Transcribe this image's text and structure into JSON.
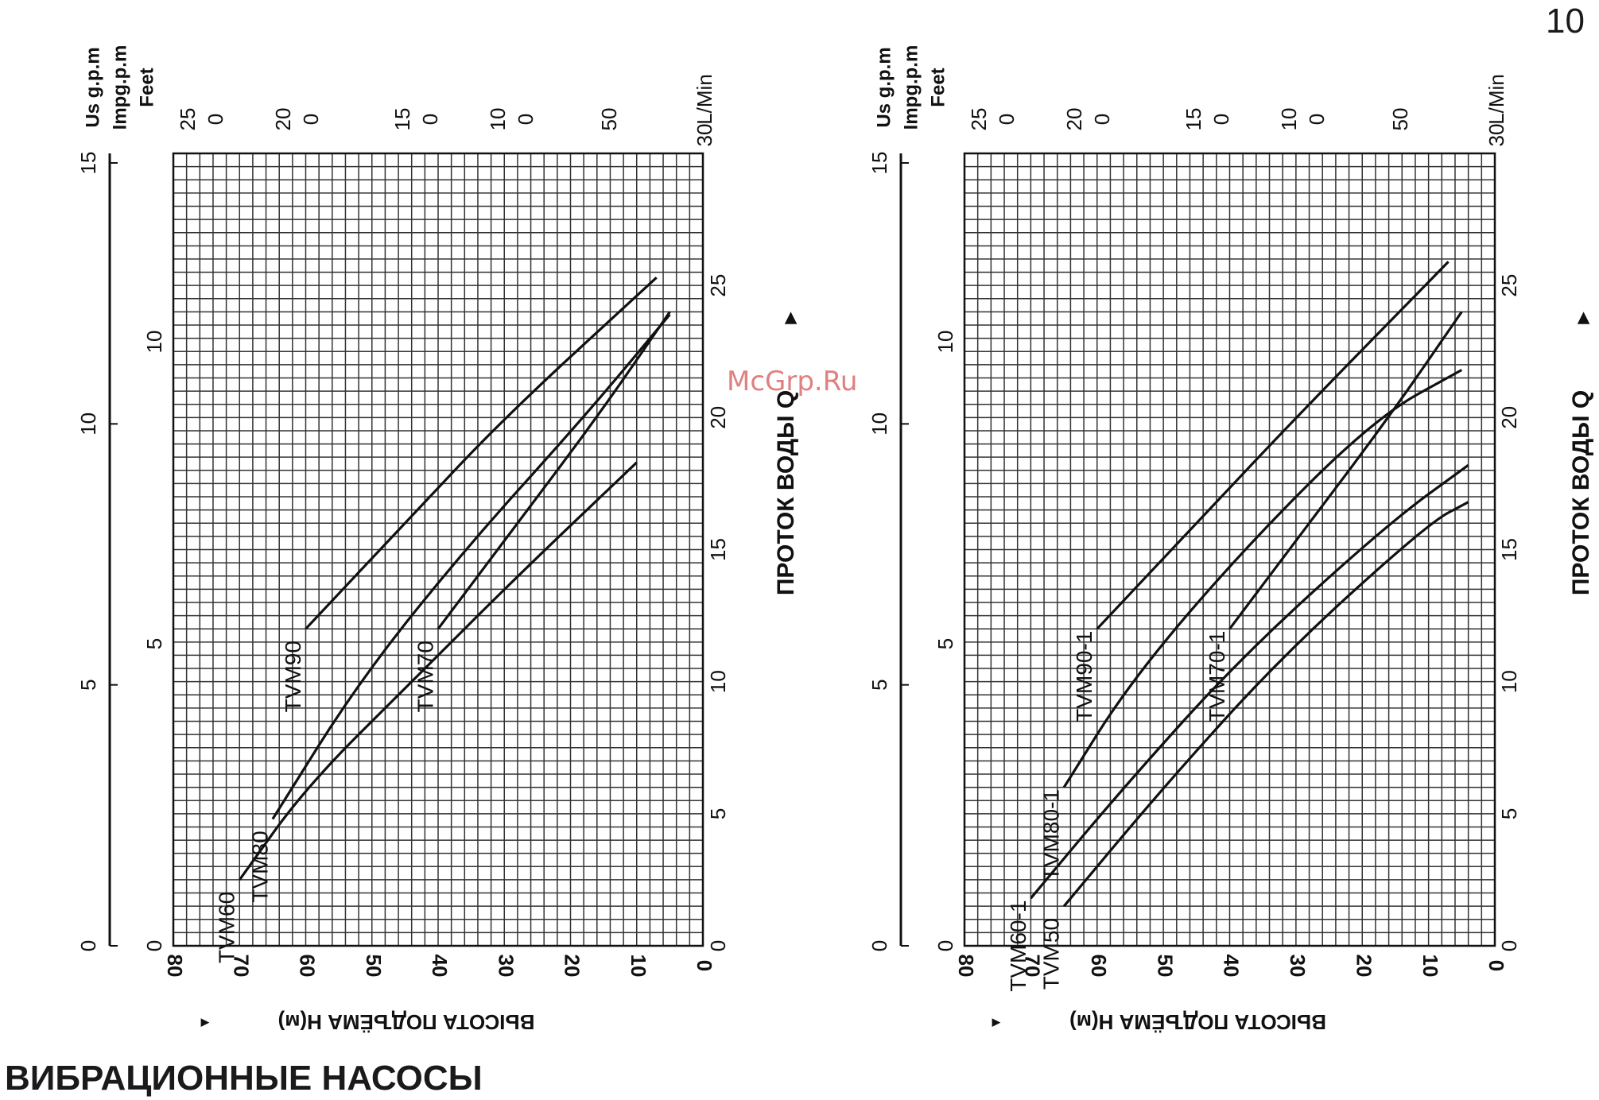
{
  "page_number": "10",
  "page_title": "ВИБРАЦИОННЫЕ НАСОСЫ",
  "watermark": "McGrp.Ru",
  "chart_data": [
    {
      "type": "line",
      "title": "",
      "ylabel": "ВЫСОТА ПОДЪЁМА H(м)",
      "xlabel": "ПРОТОК ВОДЫ Q",
      "unit_labels": [
        "Us g.p.m",
        "Impg.p.m",
        "Feet"
      ],
      "x_unit_label": "L/Min",
      "xlim": [
        0,
        30
      ],
      "ylim": [
        0,
        80
      ],
      "head_ticks": [
        "80",
        "70",
        "60",
        "50",
        "40",
        "30",
        "20",
        "10",
        "0"
      ],
      "feet_ticks": [
        "25",
        "20",
        "15",
        "10",
        "50"
      ],
      "impg_ticks": [
        "0",
        "0",
        "0",
        "0"
      ],
      "impg_axis_ticks": [
        "0",
        "5",
        "10"
      ],
      "usg_axis_ticks": [
        "0",
        "5",
        "10",
        "15"
      ],
      "flow_ticks": [
        "0",
        "5",
        "10",
        "15",
        "20",
        "25",
        "30"
      ],
      "series": [
        {
          "name": "TVM60",
          "x": [
            2.5,
            6,
            10,
            14,
            18.3
          ],
          "y": [
            70,
            60,
            44,
            28,
            10
          ]
        },
        {
          "name": "TVM80",
          "x": [
            4.8,
            10,
            15,
            20,
            23.9
          ],
          "y": [
            65,
            52,
            36,
            18,
            5
          ]
        },
        {
          "name": "TVM90",
          "x": [
            12,
            16,
            20,
            25.3
          ],
          "y": [
            60,
            45,
            30,
            7
          ]
        },
        {
          "name": "TVM70",
          "x": [
            12,
            16,
            20,
            24
          ],
          "y": [
            40,
            28,
            16,
            5
          ]
        }
      ]
    },
    {
      "type": "line",
      "title": "",
      "ylabel": "ВЫСОТА ПОДЪЁМА H(м)",
      "xlabel": "ПРОТОК ВОДЫ Q",
      "unit_labels": [
        "Us g.p.m",
        "Impg.p.m",
        "Feet"
      ],
      "x_unit_label": "L/Min",
      "xlim": [
        0,
        30
      ],
      "ylim": [
        0,
        80
      ],
      "head_ticks": [
        "80",
        "70",
        "60",
        "50",
        "40",
        "30",
        "20",
        "10",
        "0"
      ],
      "feet_ticks": [
        "25",
        "20",
        "15",
        "10",
        "50"
      ],
      "impg_ticks": [
        "0",
        "0",
        "0",
        "0"
      ],
      "impg_axis_ticks": [
        "0",
        "5",
        "10"
      ],
      "usg_axis_ticks": [
        "0",
        "5",
        "10",
        "15"
      ],
      "flow_ticks": [
        "0",
        "5",
        "10",
        "15",
        "20",
        "25",
        "30"
      ],
      "series": [
        {
          "name": "TVM60-1",
          "x": [
            1.8,
            6,
            11,
            16,
            18.2
          ],
          "y": [
            70,
            56,
            38,
            16,
            4
          ]
        },
        {
          "name": "TVM50",
          "x": [
            1.5,
            6,
            11,
            16,
            16.8
          ],
          "y": [
            65,
            50,
            32,
            10,
            4
          ]
        },
        {
          "name": "TVM80-1",
          "x": [
            6,
            10,
            15,
            20,
            21.8
          ],
          "y": [
            65,
            55,
            38,
            18,
            5
          ]
        },
        {
          "name": "TVM90-1",
          "x": [
            12,
            16,
            20,
            25.9
          ],
          "y": [
            60,
            45,
            30,
            7
          ]
        },
        {
          "name": "TVM70-1",
          "x": [
            12,
            16,
            20,
            24
          ],
          "y": [
            40,
            28,
            16,
            5
          ]
        }
      ]
    }
  ]
}
